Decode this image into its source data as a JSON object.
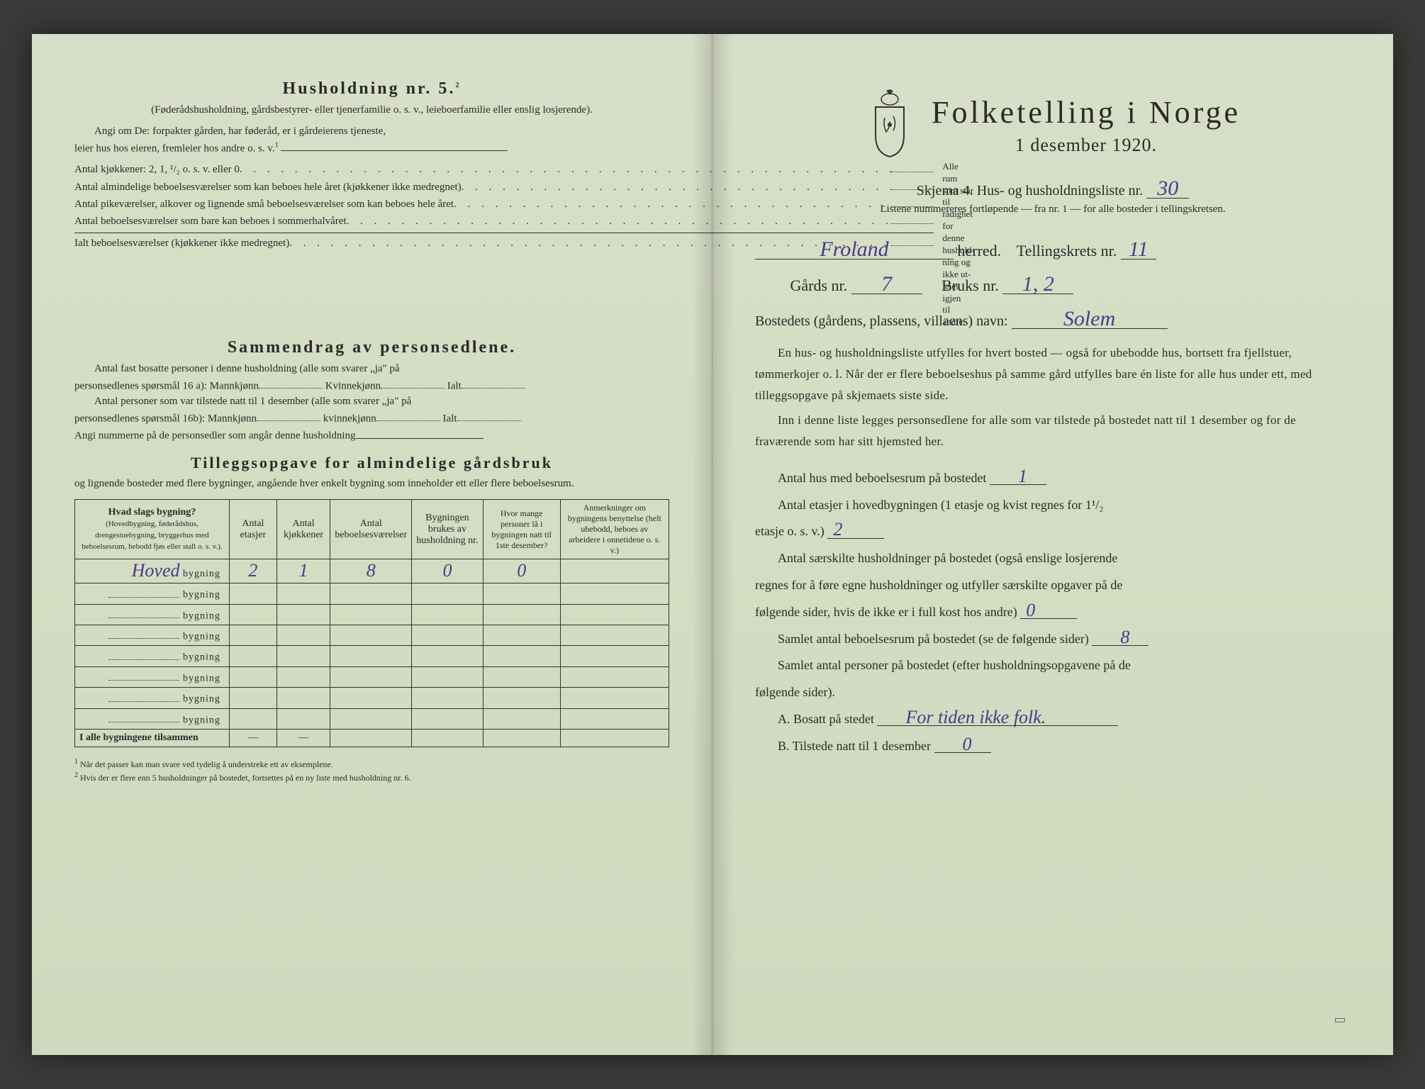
{
  "left": {
    "heading": "Husholdning nr. 5.",
    "heading_sup": "2",
    "sub1": "(Føderådshusholdning, gårdsbestyrer- eller tjenerfamilie o. s. v., leieboerfamilie eller enslig losjerende).",
    "para1a": "Angi om De:  forpakter gården, har føderåd, er i gårdeierens tjeneste,",
    "para1b": "leier hus hos eieren, fremleier hos andre o. s. v.",
    "para1b_sup": "1",
    "kj_line": "Antal kjøkkener: 2, 1, ¹/₂ o. s. v. eller 0",
    "rows": [
      "Antal almindelige beboelsesværelser som kan beboes hele året (kjøkkener ikke medregnet)",
      "Antal pikeværelser, alkover og lignende små beboelsesværelser som kan beboes hele året",
      "Antal beboelsesværelser som bare kan beboes i sommerhalvåret",
      "Ialt beboelsesværelser (kjøkkener ikke medregnet)"
    ],
    "brace_lines": [
      "Alle rum",
      "som står til",
      "rådighet",
      "for denne",
      "hushold-",
      "ning og",
      "ikke ut-",
      "leies igjen",
      "til andre."
    ],
    "sammen_heading": "Sammendrag av personsedlene.",
    "sammen1a": "Antal fast bosatte personer i denne husholdning (alle som svarer „ja\" på",
    "sammen1b": "personsedlenes spørsmål 16 a): Mannkjønn",
    "sammen1c": "Kvinnekjønn",
    "sammen1d": "Ialt",
    "sammen2a": "Antal personer som var tilstede natt til 1 desember (alle som svarer „ja\" på",
    "sammen2b": "personsedlenes spørsmål 16b): Mannkjønn",
    "sammen2c": "kvinnekjønn",
    "sammen2d": "Ialt",
    "sammen3": "Angi nummerne på de personsedler som angår denne husholdning",
    "tillegg_heading": "Tilleggsopgave for almindelige gårdsbruk",
    "tillegg_sub": "og lignende bosteder med flere bygninger, angående hver enkelt bygning som inneholder ett eller flere beboelsesrum.",
    "table": {
      "headers": [
        "Hvad slags bygning?",
        "Antal etasjer",
        "Antal kjøkkener",
        "Antal beboelsesværelser",
        "Bygningen brukes av husholdning nr.",
        "Hvor mange personer lå i bygningen natt til 1ste desember?",
        "Anmerkninger om bygningens benyttelse (helt ubebodd, beboes av arbeidere i onnetidene o. s. v.)"
      ],
      "header_sub": "(Hovedbygning, føderådshus, drengestuebygning, bryggerhus med beboelsesrum, bebodd fjøs eller stall o. s. v.).",
      "rows": [
        {
          "name_hand": "Hoved",
          "label": "bygning",
          "v": [
            "2",
            "1",
            "8",
            "0",
            "0",
            ""
          ]
        },
        {
          "name_hand": "",
          "label": "bygning",
          "v": [
            "",
            "",
            "",
            "",
            "",
            ""
          ]
        },
        {
          "name_hand": "",
          "label": "bygning",
          "v": [
            "",
            "",
            "",
            "",
            "",
            ""
          ]
        },
        {
          "name_hand": "",
          "label": "bygning",
          "v": [
            "",
            "",
            "",
            "",
            "",
            ""
          ]
        },
        {
          "name_hand": "",
          "label": "bygning",
          "v": [
            "",
            "",
            "",
            "",
            "",
            ""
          ]
        },
        {
          "name_hand": "",
          "label": "bygning",
          "v": [
            "",
            "",
            "",
            "",
            "",
            ""
          ]
        },
        {
          "name_hand": "",
          "label": "bygning",
          "v": [
            "",
            "",
            "",
            "",
            "",
            ""
          ]
        },
        {
          "name_hand": "",
          "label": "bygning",
          "v": [
            "",
            "",
            "",
            "",
            "",
            ""
          ]
        }
      ],
      "total_label": "I alle bygningene tilsammen",
      "total_vals": [
        "—",
        "—",
        "",
        "",
        "",
        ""
      ]
    },
    "fn1_sup": "1",
    "fn1": "Når det passer kan man svare ved tydelig å understreke ett av eksemplene.",
    "fn2_sup": "2",
    "fn2": "Hvis der er flere enn 5 husholdninger på bostedet, fortsettes på en ny liste med husholdning nr. 6.",
    "stamp_text": ""
  },
  "right": {
    "title": "Folketelling i Norge",
    "date": "1 desember 1920.",
    "skjema": "Skjema 4.   Hus- og husholdningsliste nr.",
    "skjema_val": "30",
    "listen": "Listene nummereres fortløpende — fra nr. 1 — for alle bosteder i tellingskretsen.",
    "herred_val": "Froland",
    "herred_lbl": "herred.",
    "telling_lbl": "Tellingskrets nr.",
    "telling_val": "11",
    "gard_lbl": "Gårds nr.",
    "gard_val": "7",
    "bruk_lbl": "Bruks nr.",
    "bruk_val": "1, 2",
    "bosted_lbl": "Bostedets (gårdens, plassens, villaens) navn:",
    "bosted_val": "Solem",
    "para1": "En hus- og husholdningsliste utfylles for hvert bosted — også for ubebodde hus, bortsett fra fjellstuer, tømmerkojer o. l.  Når der er flere beboelseshus på samme gård utfylles bare én liste for alle hus under ett, med tilleggsopgave på skjemaets siste side.",
    "para2": "Inn i denne liste legges personsedlene for alle som var tilstede på bostedet natt til 1 desember og for de fraværende som har sitt hjemsted her.",
    "q1": "Antal hus med beboelsesrum på bostedet",
    "q1_val": "1",
    "q2a": "Antal etasjer i hovedbygningen (1 etasje og kvist regnes for 1¹/₂",
    "q2b": "etasje o. s. v.)",
    "q2_val": "2",
    "q3a": "Antal særskilte husholdninger på bostedet (også enslige losjerende",
    "q3b": "regnes for å føre egne husholdninger og utfyller særskilte opgaver på de",
    "q3c": "følgende sider, hvis de ikke er i full kost hos andre)",
    "q3_val": "0",
    "q4": "Samlet antal beboelsesrum på bostedet (se de følgende sider)",
    "q4_val": "8",
    "q5a": "Samlet antal personer på bostedet (efter husholdningsopgavene på de",
    "q5b": "følgende sider).",
    "qA": "A.  Bosatt på stedet",
    "qA_val": "For tiden ikke folk.",
    "qB": "B.  Tilstede natt til 1 desember",
    "qB_val": "0",
    "printer": ""
  },
  "colors": {
    "paper": "#d6ddc5",
    "ink": "#2a2a28",
    "handwriting": "#4a3a8a"
  }
}
